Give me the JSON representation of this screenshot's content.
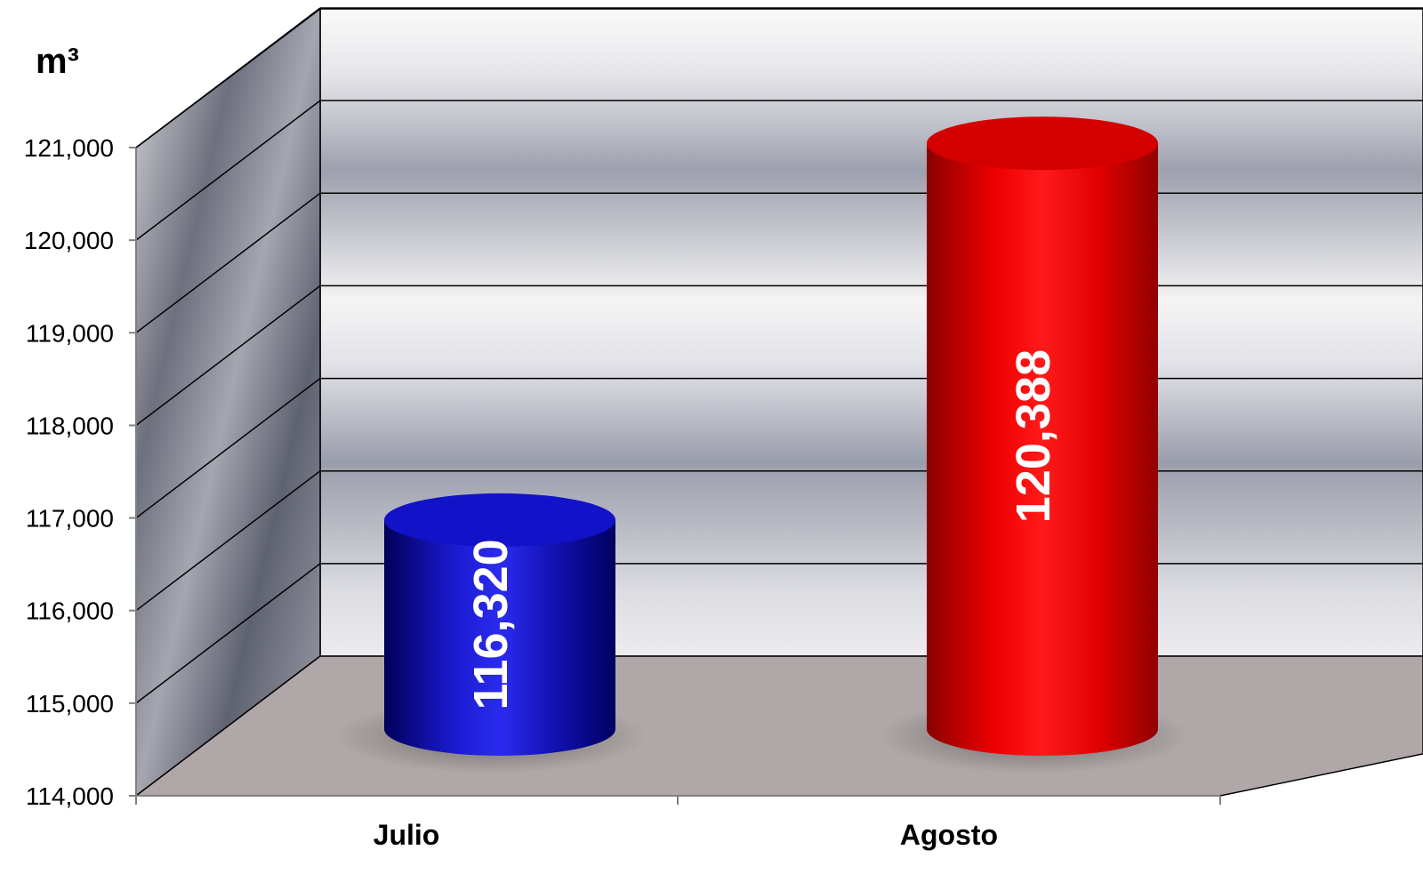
{
  "chart_data": {
    "type": "bar",
    "style": "3d-cylinder",
    "categories": [
      "Julio",
      "Agosto"
    ],
    "values": [
      116320,
      120388
    ],
    "value_labels": [
      "116,320",
      "120,388"
    ],
    "colors": [
      "#1010b8",
      "#e00000"
    ],
    "ylabel": "m³",
    "ylim": [
      114000,
      121000
    ],
    "yticks": [
      114000,
      115000,
      116000,
      117000,
      118000,
      119000,
      120000,
      121000
    ],
    "ytick_labels": [
      "114,000",
      "115,000",
      "116,000",
      "117,000",
      "118,000",
      "119,000",
      "120,000",
      "121,000"
    ],
    "grid": true,
    "legend": "none",
    "data_labels": "inside-vertical"
  }
}
